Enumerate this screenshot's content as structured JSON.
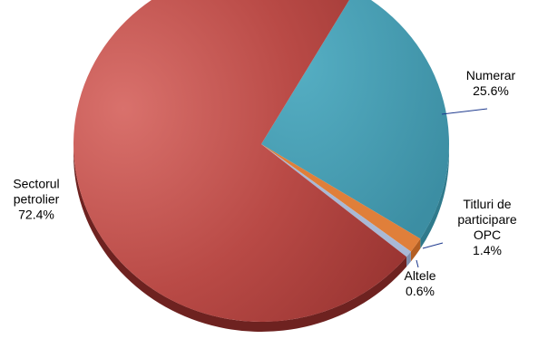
{
  "chart_data": {
    "type": "pie",
    "title": "",
    "slices": [
      {
        "label_lines": [
          "Numerar"
        ],
        "value_text": "25.6%",
        "value": 25.6,
        "color": "#4a9fb5",
        "side_color": "#2f7a8c"
      },
      {
        "label_lines": [
          "Titluri de",
          "participare",
          "OPC"
        ],
        "value_text": "1.4%",
        "value": 1.4,
        "color": "#e07f3a",
        "side_color": "#b35e22"
      },
      {
        "label_lines": [
          "Altele"
        ],
        "value_text": "0.6%",
        "value": 0.6,
        "color": "#a9b9d6",
        "side_color": "#7f8fae"
      },
      {
        "label_lines": [
          "Sectorul",
          "petrolier"
        ],
        "value_text": "72.4%",
        "value": 72.4,
        "color": "#c04f4b",
        "side_color": "#6e2220"
      }
    ]
  }
}
